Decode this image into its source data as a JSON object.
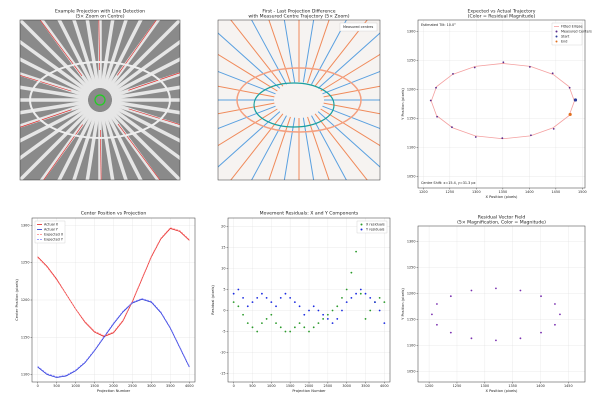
{
  "chart_data": [
    {
      "type": "image",
      "title": "Example Projection with Line Detection",
      "subtitle": "(5× Zoom on Centre)"
    },
    {
      "type": "image",
      "title": "First - Last Projection Difference",
      "subtitle": "with Measured Centre Trajectory (5× Zoom)",
      "labels": [
        "Measured centres"
      ]
    },
    {
      "type": "scatter",
      "title": "Expected vs Actual Trajectory",
      "subtitle": "(Color = Residual Magnitude)",
      "xlabel": "X Position (pixels)",
      "ylabel": "Y Position (pixels)",
      "xlim": [
        1190,
        1505
      ],
      "xticks": [
        1200,
        1250,
        1300,
        1350,
        1400,
        1450,
        1500
      ],
      "ylim": [
        1030,
        1320
      ],
      "yticks": [
        1050,
        1100,
        1150,
        1200,
        1250,
        1300
      ],
      "annotations": [
        "Estimated Tilt: 10.0°",
        "Centre Shift: x=15.4, y=31.3 px"
      ],
      "grid": true,
      "legend": "upper right",
      "series": [
        {
          "name": "Fitted Ellipse",
          "color": "#f4a0a0",
          "style": "line",
          "x": [
            1485,
            1475,
            1445,
            1402,
            1350,
            1298,
            1255,
            1225,
            1215,
            1225,
            1255,
            1298,
            1350,
            1402,
            1445,
            1475,
            1485
          ],
          "values": [
            1180,
            1205,
            1226,
            1240,
            1245,
            1240,
            1226,
            1205,
            1180,
            1155,
            1134,
            1120,
            1115,
            1120,
            1134,
            1155,
            1180
          ]
        },
        {
          "name": "Measured Centers",
          "color": "#5a2a8a",
          "style": "points",
          "x": [
            1487,
            1476,
            1444,
            1401,
            1351,
            1297,
            1256,
            1224,
            1214,
            1226,
            1254,
            1299,
            1349,
            1403,
            1446,
            1477
          ],
          "values": [
            1182,
            1203,
            1228,
            1239,
            1247,
            1238,
            1227,
            1203,
            1181,
            1153,
            1135,
            1118,
            1116,
            1121,
            1132,
            1157
          ]
        },
        {
          "name": "Start",
          "color": "#2a3a9a",
          "style": "points",
          "x": [
            1487
          ],
          "values": [
            1182
          ]
        },
        {
          "name": "End",
          "color": "#e07020",
          "style": "points",
          "x": [
            1477
          ],
          "values": [
            1157
          ]
        }
      ]
    },
    {
      "type": "line",
      "title": "Center Position vs Projection",
      "xlabel": "Projection Number",
      "ylabel": "Center Position (pixels)",
      "x": [
        0,
        250,
        500,
        750,
        1000,
        1250,
        1500,
        1750,
        2000,
        2250,
        2500,
        2750,
        3000,
        3250,
        3500,
        3750,
        4000
      ],
      "xlim": [
        -150,
        4150
      ],
      "xticks": [
        0,
        500,
        1000,
        1500,
        2000,
        2500,
        3000,
        3500,
        4000
      ],
      "ylim": [
        1090,
        1310
      ],
      "yticks": [
        1100,
        1150,
        1200,
        1250,
        1300
      ],
      "grid": true,
      "legend": "upper left",
      "series": [
        {
          "name": "Actual X",
          "color": "#e02020",
          "values": [
            1258,
            1245,
            1228,
            1208,
            1188,
            1170,
            1157,
            1151,
            1156,
            1172,
            1198,
            1228,
            1258,
            1282,
            1296,
            1292,
            1280
          ]
        },
        {
          "name": "Actual Y",
          "color": "#2030d0",
          "values": [
            1110,
            1100,
            1096,
            1098,
            1105,
            1116,
            1132,
            1150,
            1168,
            1184,
            1196,
            1201,
            1197,
            1183,
            1162,
            1136,
            1110
          ]
        },
        {
          "name": "Expected X",
          "color": "#ff8080",
          "dash": true,
          "values": [
            1257,
            1244,
            1227,
            1208,
            1188,
            1171,
            1158,
            1152,
            1157,
            1173,
            1199,
            1229,
            1259,
            1283,
            1297,
            1293,
            1281
          ]
        },
        {
          "name": "Expected Y",
          "color": "#8080ff",
          "dash": true,
          "values": [
            1111,
            1101,
            1097,
            1099,
            1106,
            1117,
            1133,
            1151,
            1169,
            1185,
            1197,
            1202,
            1198,
            1184,
            1163,
            1137,
            1111
          ]
        }
      ]
    },
    {
      "type": "scatter",
      "title": "Movement Residuals: X and Y Components",
      "xlabel": "Projection Number",
      "ylabel": "Residual (pixels)",
      "x": [
        0,
        125,
        250,
        375,
        500,
        625,
        750,
        875,
        1000,
        1125,
        1250,
        1375,
        1500,
        1625,
        1750,
        1875,
        2000,
        2125,
        2250,
        2375,
        2500,
        2625,
        2750,
        2875,
        3000,
        3125,
        3250,
        3375,
        3500,
        3625,
        3750,
        3875,
        4000
      ],
      "xlim": [
        -150,
        4150
      ],
      "xticks": [
        0,
        500,
        1000,
        1500,
        2000,
        2500,
        3000,
        3500,
        4000
      ],
      "ylim": [
        -17,
        22
      ],
      "yticks": [
        -15,
        -10,
        -5,
        0,
        5,
        10,
        15,
        20
      ],
      "grid": true,
      "legend": "upper right",
      "series": [
        {
          "name": "X residuals",
          "color": "#2a9a2a",
          "style": "points",
          "values": [
            2,
            1,
            -1,
            -3,
            -4,
            -5,
            -3,
            -2,
            -1,
            -3,
            -4,
            -5,
            -5,
            -4,
            -3,
            -4,
            -5,
            -4,
            -3,
            -2,
            -1,
            0,
            1,
            3,
            5,
            9,
            14,
            4,
            -2,
            0,
            2,
            3,
            2
          ]
        },
        {
          "name": "Y residuals",
          "color": "#1a2ae0",
          "style": "points",
          "values": [
            4,
            5,
            3,
            1,
            2,
            3,
            4,
            3,
            2,
            1,
            3,
            4,
            3,
            2,
            1,
            -1,
            0,
            1,
            0,
            -1,
            -2,
            -3,
            -2,
            0,
            2,
            3,
            4,
            5,
            4,
            3,
            2,
            0,
            -3
          ]
        }
      ]
    },
    {
      "type": "scatter",
      "title": "Residual Vector Field",
      "subtitle": "(5× Magnification, Color = Magnitude)",
      "xlabel": "X Position (pixels)",
      "ylabel": "Y Position (pixels)",
      "xlim": [
        1180,
        1480
      ],
      "xticks": [
        1200,
        1250,
        1300,
        1350,
        1400,
        1450
      ],
      "ylim": [
        1030,
        1330
      ],
      "yticks": [
        1050,
        1100,
        1150,
        1200,
        1250,
        1300
      ],
      "grid": true,
      "series": [
        {
          "color": "#7a30b0",
          "style": "points",
          "x": [
            1435,
            1426,
            1401,
            1364,
            1320,
            1276,
            1239,
            1214,
            1205,
            1214,
            1239,
            1276,
            1320,
            1364,
            1401,
            1426
          ],
          "values": [
            1160,
            1180,
            1195,
            1206,
            1210,
            1206,
            1195,
            1180,
            1160,
            1140,
            1125,
            1114,
            1110,
            1114,
            1125,
            1140
          ]
        }
      ]
    }
  ]
}
